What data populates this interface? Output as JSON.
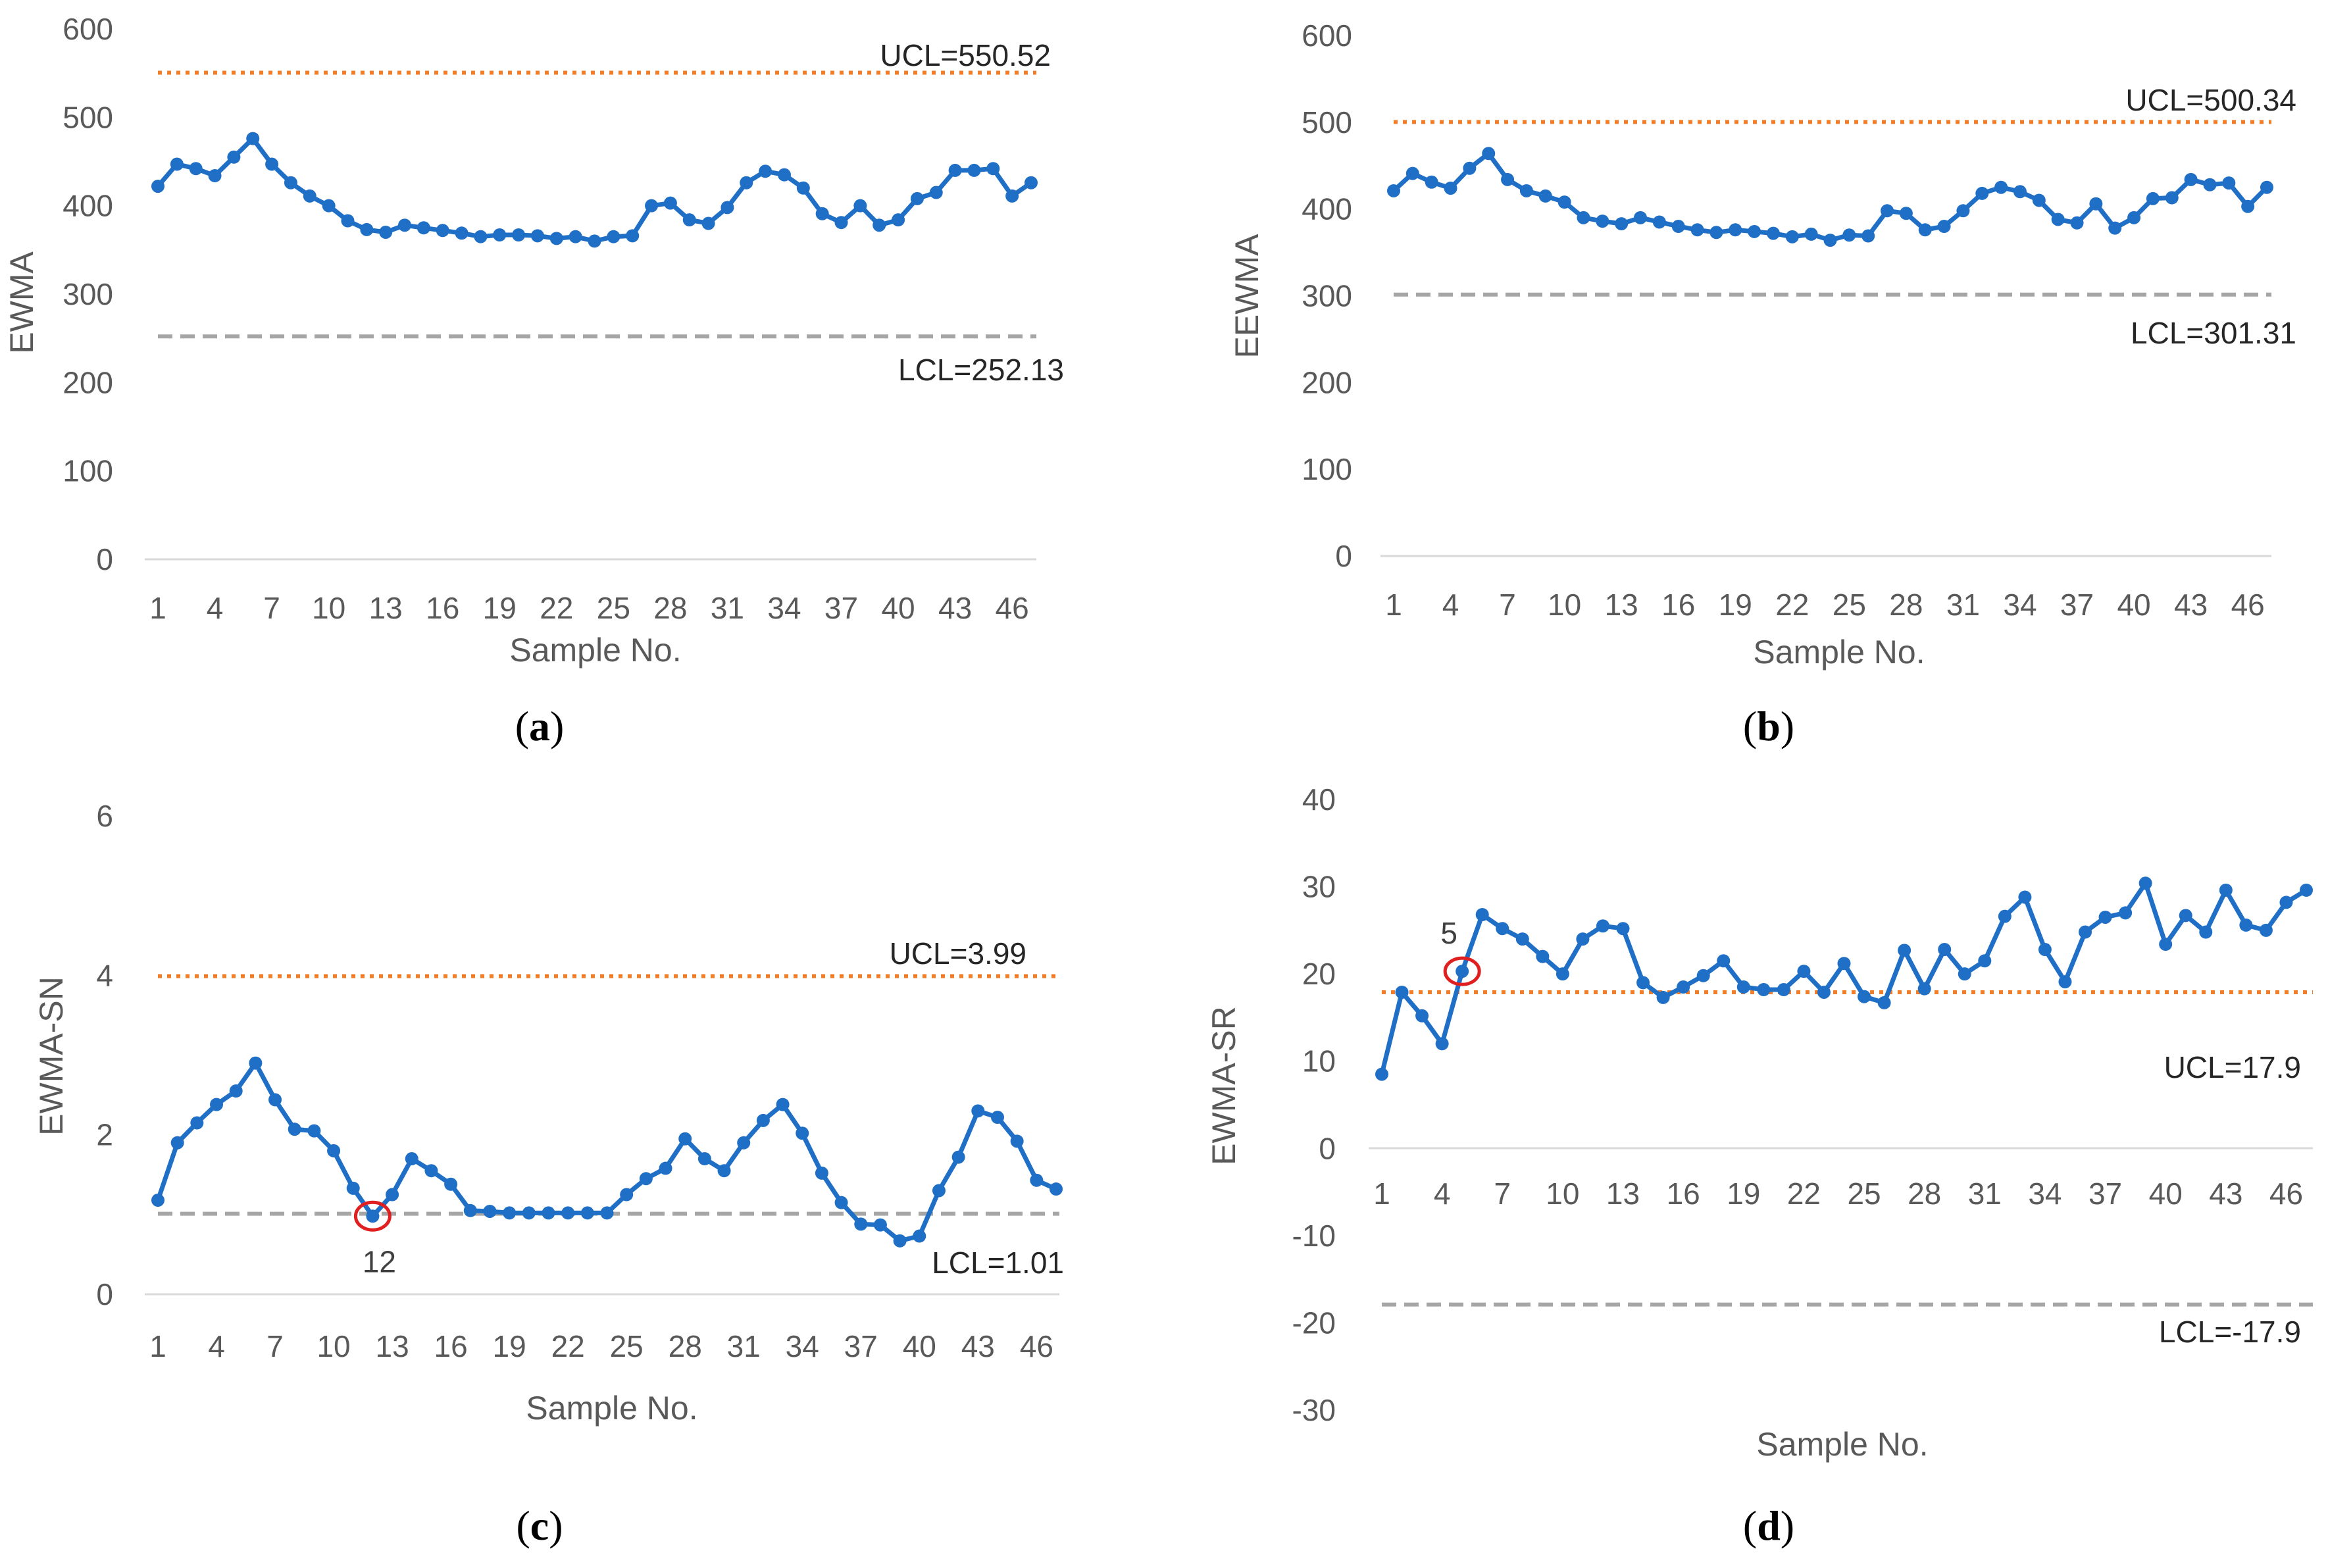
{
  "colors": {
    "series": "#1f6fc6",
    "ucl": "#f07d2a",
    "lcl": "#a6a6a6",
    "axis": "#d9d9d9",
    "highlight": "#e02020",
    "text": "#595959"
  },
  "chart_data": [
    {
      "type": "line",
      "panel_label": "a",
      "ylabel": "EWMA",
      "xlabel": "Sample No.",
      "ylim": [
        0,
        600
      ],
      "yticks": [
        0,
        100,
        200,
        300,
        400,
        500,
        600
      ],
      "xtick_labels": [
        "1",
        "4",
        "7",
        "10",
        "13",
        "16",
        "19",
        "22",
        "25",
        "28",
        "31",
        "34",
        "37",
        "40",
        "43",
        "46"
      ],
      "ucl": {
        "value": 550.52,
        "label": "UCL=550.52"
      },
      "lcl": {
        "value": 252.13,
        "label": "LCL=252.13"
      },
      "series": [
        {
          "name": "EWMA",
          "values": [
            422,
            447,
            442,
            434,
            455,
            476,
            447,
            426,
            411,
            400,
            383,
            373,
            370,
            378,
            375,
            372,
            369,
            365,
            367,
            367,
            366,
            363,
            365,
            360,
            365,
            366,
            400,
            403,
            384,
            380,
            398,
            426,
            439,
            435,
            420,
            391,
            381,
            400,
            378,
            384,
            408,
            415,
            440,
            440,
            442,
            411,
            426
          ]
        }
      ],
      "highlight": null
    },
    {
      "type": "line",
      "panel_label": "b",
      "ylabel": "EEWMA",
      "xlabel": "Sample No.",
      "ylim": [
        0,
        600
      ],
      "yticks": [
        0,
        100,
        200,
        300,
        400,
        500,
        600
      ],
      "xtick_labels": [
        "1",
        "4",
        "7",
        "10",
        "13",
        "16",
        "19",
        "22",
        "25",
        "28",
        "31",
        "34",
        "37",
        "40",
        "43",
        "46"
      ],
      "ucl": {
        "value": 500.34,
        "label": "UCL=500.34"
      },
      "lcl": {
        "value": 301.31,
        "label": "LCL=301.31"
      },
      "series": [
        {
          "name": "EEWMA",
          "values": [
            421,
            441,
            431,
            424,
            447,
            464,
            434,
            421,
            415,
            408,
            390,
            386,
            383,
            390,
            385,
            380,
            376,
            373,
            376,
            374,
            372,
            368,
            371,
            364,
            370,
            369,
            398,
            395,
            376,
            380,
            398,
            418,
            425,
            420,
            410,
            388,
            384,
            406,
            378,
            390,
            412,
            413,
            434,
            428,
            430,
            403,
            425
          ]
        }
      ],
      "highlight": null
    },
    {
      "type": "line",
      "panel_label": "c",
      "ylabel": "EWMA-SN",
      "xlabel": "Sample No.",
      "ylim": [
        0,
        6
      ],
      "yticks": [
        0,
        2,
        4,
        6
      ],
      "xtick_labels": [
        "1",
        "4",
        "7",
        "10",
        "13",
        "16",
        "19",
        "22",
        "25",
        "28",
        "31",
        "34",
        "37",
        "40",
        "43",
        "46"
      ],
      "ucl": {
        "value": 3.99,
        "label": "UCL=3.99"
      },
      "lcl": {
        "value": 1.01,
        "label": "LCL=1.01"
      },
      "series": [
        {
          "name": "EWMA-SN",
          "values": [
            1.18,
            1.9,
            2.15,
            2.38,
            2.55,
            2.9,
            2.44,
            2.07,
            2.05,
            1.8,
            1.33,
            0.98,
            1.25,
            1.7,
            1.55,
            1.38,
            1.05,
            1.04,
            1.02,
            1.02,
            1.02,
            1.02,
            1.02,
            1.02,
            1.25,
            1.45,
            1.58,
            1.95,
            1.7,
            1.55,
            1.9,
            2.18,
            2.38,
            2.02,
            1.52,
            1.15,
            0.88,
            0.87,
            0.67,
            0.73,
            1.3,
            1.72,
            2.3,
            2.22,
            1.92,
            1.43,
            1.32
          ]
        }
      ],
      "highlight": {
        "index": 12,
        "label": "12"
      }
    },
    {
      "type": "line",
      "panel_label": "d",
      "ylabel": "EWMA-SR",
      "xlabel": "Sample No.",
      "ylim": [
        -30,
        40
      ],
      "yticks": [
        -30,
        -20,
        -10,
        0,
        10,
        20,
        30,
        40
      ],
      "xtick_labels": [
        "1",
        "4",
        "7",
        "10",
        "13",
        "16",
        "19",
        "22",
        "25",
        "28",
        "31",
        "34",
        "37",
        "40",
        "43",
        "46"
      ],
      "ucl": {
        "value": 17.9,
        "label": "UCL=17.9"
      },
      "lcl": {
        "value": -17.9,
        "label": "LCL=-17.9"
      },
      "series": [
        {
          "name": "EWMA-SR",
          "values": [
            8.5,
            17.9,
            15.2,
            12.0,
            20.3,
            26.8,
            25.2,
            24.0,
            22.0,
            20.0,
            24.0,
            25.5,
            25.2,
            19.0,
            17.3,
            18.5,
            19.8,
            21.5,
            18.5,
            18.2,
            18.2,
            20.3,
            17.9,
            21.2,
            17.4,
            16.7,
            22.7,
            18.3,
            22.8,
            20.0,
            21.5,
            26.6,
            28.8,
            22.8,
            19.1,
            24.8,
            26.5,
            27.0,
            30.4,
            23.4,
            26.7,
            24.8,
            29.6,
            25.6,
            25.0,
            28.2,
            29.6
          ]
        }
      ],
      "highlight": {
        "index": 5,
        "label": "5"
      }
    }
  ]
}
